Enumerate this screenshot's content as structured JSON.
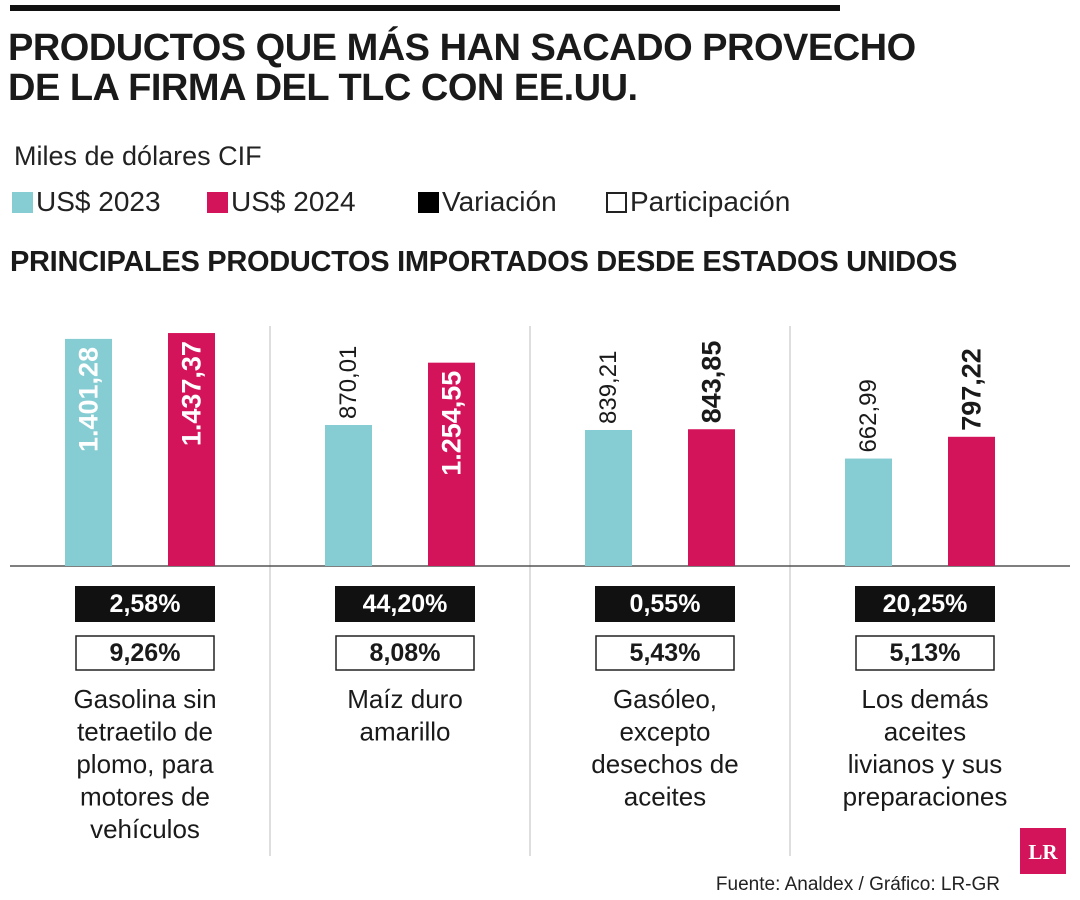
{
  "header": {
    "title_line1": "PRODUCTOS QUE MÁS HAN SACADO PROVECHO",
    "title_line2": "DE LA FIRMA DEL TLC CON EE.UU.",
    "units": "Miles de dólares CIF",
    "subtitle": "PRINCIPALES PRODUCTOS IMPORTADOS DESDE ESTADOS UNIDOS"
  },
  "legend": [
    {
      "label": "US$ 2023",
      "color": "#86cdd3"
    },
    {
      "label": "US$ 2024",
      "color": "#d4145a"
    },
    {
      "label": "Variación",
      "color": "#000000"
    },
    {
      "label": "Participación",
      "color": "#ffffff"
    }
  ],
  "chart_data": {
    "type": "bar",
    "categories": [
      "Gasolina sin tetraetilo de plomo, para motores de vehículos",
      "Maíz duro amarillo",
      "Gasóleo, excepto desechos de aceites",
      "Los demás aceites livianos y sus preparaciones"
    ],
    "category_lines": [
      [
        "Gasolina sin",
        "tetraetilo de",
        "plomo, para",
        "motores de",
        "vehículos"
      ],
      [
        "Maíz duro",
        "amarillo"
      ],
      [
        "Gasóleo,",
        "excepto",
        "desechos de",
        "aceites"
      ],
      [
        "Los demás",
        "aceites",
        "livianos y sus",
        "preparaciones"
      ]
    ],
    "series": [
      {
        "name": "US$ 2023",
        "color": "#86cdd3",
        "values": [
          1401.28,
          870.01,
          839.21,
          662.99
        ],
        "labels": [
          "1.401,28",
          "870,01",
          "839,21",
          "662,99"
        ]
      },
      {
        "name": "US$ 2024",
        "color": "#d4145a",
        "values": [
          1437.37,
          1254.55,
          843.85,
          797.22
        ],
        "labels": [
          "1.437,37",
          "1.254,55",
          "843,85",
          "797,22"
        ]
      }
    ],
    "variacion": [
      "2,58%",
      "44,20%",
      "0,55%",
      "20,25%"
    ],
    "participacion": [
      "9,26%",
      "8,08%",
      "5,43%",
      "5,13%"
    ],
    "ylim": [
      0,
      1450
    ]
  },
  "footer": {
    "source": "Fuente: Analdex / Gráfico: LR-GR",
    "brand_logo": "LR",
    "brand_color": "#d4145a"
  }
}
